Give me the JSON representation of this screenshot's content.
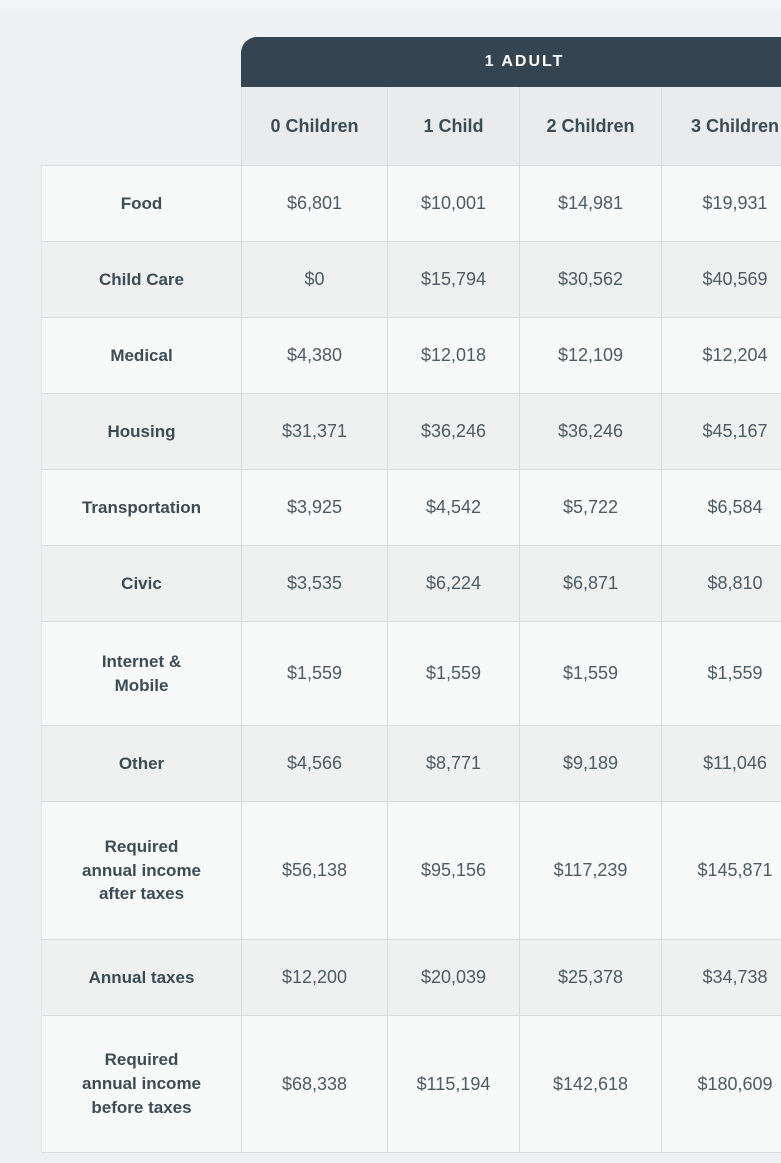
{
  "table": {
    "group_header": "1 ADULT",
    "columns": [
      "0 Children",
      "1 Child",
      "2 Children",
      "3 Children"
    ],
    "rows": [
      {
        "label": "Food",
        "values": [
          "$6,801",
          "$10,001",
          "$14,981",
          "$19,931"
        ]
      },
      {
        "label": "Child Care",
        "values": [
          "$0",
          "$15,794",
          "$30,562",
          "$40,569"
        ]
      },
      {
        "label": "Medical",
        "values": [
          "$4,380",
          "$12,018",
          "$12,109",
          "$12,204"
        ]
      },
      {
        "label": "Housing",
        "values": [
          "$31,371",
          "$36,246",
          "$36,246",
          "$45,167"
        ]
      },
      {
        "label": "Transportation",
        "values": [
          "$3,925",
          "$4,542",
          "$5,722",
          "$6,584"
        ]
      },
      {
        "label": "Civic",
        "values": [
          "$3,535",
          "$6,224",
          "$6,871",
          "$8,810"
        ]
      },
      {
        "label": "Internet &\nMobile",
        "values": [
          "$1,559",
          "$1,559",
          "$1,559",
          "$1,559"
        ]
      },
      {
        "label": "Other",
        "values": [
          "$4,566",
          "$8,771",
          "$9,189",
          "$11,046"
        ]
      },
      {
        "label": "Required\nannual income\nafter taxes",
        "values": [
          "$56,138",
          "$95,156",
          "$117,239",
          "$145,871"
        ]
      },
      {
        "label": "Annual taxes",
        "values": [
          "$12,200",
          "$20,039",
          "$25,378",
          "$34,738"
        ]
      },
      {
        "label": "Required\nannual income\nbefore taxes",
        "values": [
          "$68,338",
          "$115,194",
          "$142,618",
          "$180,609"
        ]
      }
    ],
    "colors": {
      "group_header_bg": "#344450",
      "group_header_text": "#ffffff",
      "column_header_bg": "#e9ebec",
      "row_light_bg": "#f8f9f9",
      "row_dark_bg": "#eff1f1",
      "border": "#d9dcde",
      "label_text": "#3c4c56",
      "value_text": "#4d5b64",
      "page_bg": "#eef0f1"
    }
  }
}
